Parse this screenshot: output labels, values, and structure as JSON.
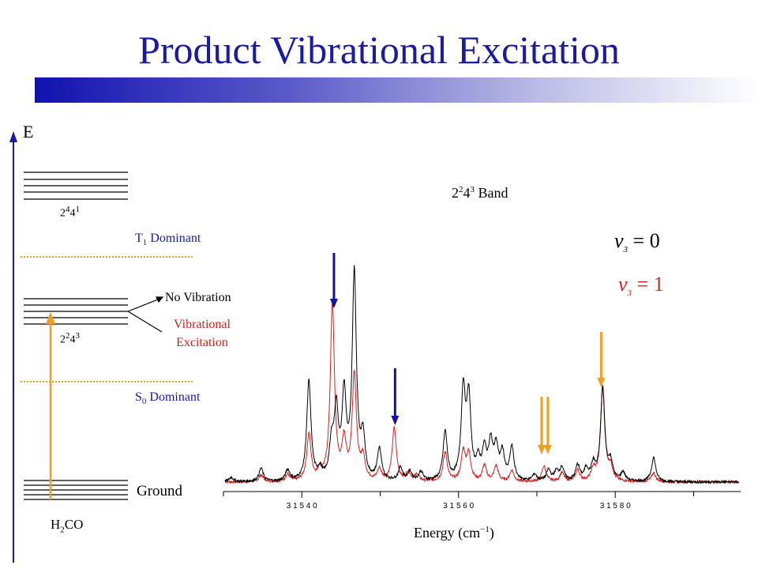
{
  "title": "Product Vibrational Excitation",
  "energy_diagram": {
    "axis_label": "E",
    "upper_state_base": "2",
    "upper_state_exp1": "4",
    "upper_state_mid": "4",
    "upper_state_exp2": "1",
    "t1_label_main": "T",
    "t1_label_sub": "1",
    "t1_label_rest": " Dominant",
    "middle_state_base": "2",
    "middle_state_exp1": "2",
    "middle_state_mid": "4",
    "middle_state_exp2": "3",
    "no_vibration": "No Vibration",
    "vibrational_line1": "Vibrational",
    "vibrational_line2": "Excitation",
    "s0_label_main": "S",
    "s0_label_sub": "0",
    "s0_label_rest": " Dominant",
    "ground_label": "Ground",
    "molecule_main": "H",
    "molecule_sub": "2",
    "molecule_rest": "CO"
  },
  "spectrum": {
    "band_base": "2",
    "band_exp1": "2",
    "band_mid": "4",
    "band_exp2": "3",
    "band_rest": " Band",
    "v0_main": "v",
    "v0_sub": "3",
    "v0_rest": " = 0",
    "v1_main": "v",
    "v1_sub": "3",
    "v1_rest": " = 1",
    "xlabel_main": "Energy (cm",
    "xlabel_exp": "−1",
    "xlabel_end": ")",
    "tick_labels": [
      "3 1 5 4 0",
      "3 1 5 6 0",
      "3 1 5 8 0"
    ]
  },
  "chart_data": {
    "type": "line",
    "xlabel": "Energy (cm−1)",
    "xlim": [
      31530,
      31596
    ],
    "major_ticks": [
      31540,
      31560,
      31580
    ],
    "minor_ticks": [
      31530,
      31550,
      31570,
      31590
    ],
    "series": [
      {
        "name": "v3 = 0",
        "color": "#000000",
        "peaks": [
          {
            "x": 31531,
            "h": 0.02
          },
          {
            "x": 31534.8,
            "h": 0.06
          },
          {
            "x": 31538.2,
            "h": 0.05
          },
          {
            "x": 31540.9,
            "h": 0.45
          },
          {
            "x": 31542.3,
            "h": 0.04
          },
          {
            "x": 31543.8,
            "h": 0.15
          },
          {
            "x": 31544.4,
            "h": 0.3
          },
          {
            "x": 31545.4,
            "h": 0.37
          },
          {
            "x": 31546.7,
            "h": 0.93
          },
          {
            "x": 31547.8,
            "h": 0.18
          },
          {
            "x": 31549.9,
            "h": 0.14
          },
          {
            "x": 31552.6,
            "h": 0.06
          },
          {
            "x": 31553.8,
            "h": 0.04
          },
          {
            "x": 31555.2,
            "h": 0.04
          },
          {
            "x": 31558.3,
            "h": 0.22
          },
          {
            "x": 31560.6,
            "h": 0.4
          },
          {
            "x": 31561.3,
            "h": 0.36
          },
          {
            "x": 31562.5,
            "h": 0.08
          },
          {
            "x": 31563.3,
            "h": 0.13
          },
          {
            "x": 31564.1,
            "h": 0.16
          },
          {
            "x": 31564.8,
            "h": 0.14
          },
          {
            "x": 31565.6,
            "h": 0.12
          },
          {
            "x": 31566.8,
            "h": 0.15
          },
          {
            "x": 31569.7,
            "h": 0.03
          },
          {
            "x": 31571.5,
            "h": 0.05
          },
          {
            "x": 31572.5,
            "h": 0.04
          },
          {
            "x": 31573.2,
            "h": 0.06
          },
          {
            "x": 31575.2,
            "h": 0.07
          },
          {
            "x": 31576.3,
            "h": 0.05
          },
          {
            "x": 31577.2,
            "h": 0.07
          },
          {
            "x": 31578.4,
            "h": 0.42
          },
          {
            "x": 31579.4,
            "h": 0.08
          },
          {
            "x": 31581.0,
            "h": 0.04
          },
          {
            "x": 31584.9,
            "h": 0.11
          }
        ]
      },
      {
        "name": "v3 = 1",
        "color": "#d42020",
        "peaks": [
          {
            "x": 31534.8,
            "h": 0.03
          },
          {
            "x": 31538.2,
            "h": 0.03
          },
          {
            "x": 31540.9,
            "h": 0.21
          },
          {
            "x": 31542.3,
            "h": 0.04
          },
          {
            "x": 31543.9,
            "h": 0.8
          },
          {
            "x": 31545.4,
            "h": 0.17
          },
          {
            "x": 31546.7,
            "h": 0.48
          },
          {
            "x": 31547.8,
            "h": 0.1
          },
          {
            "x": 31549.9,
            "h": 0.05
          },
          {
            "x": 31551.8,
            "h": 0.24
          },
          {
            "x": 31553.6,
            "h": 0.04
          },
          {
            "x": 31554.7,
            "h": 0.03
          },
          {
            "x": 31558.3,
            "h": 0.13
          },
          {
            "x": 31560.6,
            "h": 0.13
          },
          {
            "x": 31561.3,
            "h": 0.12
          },
          {
            "x": 31563.3,
            "h": 0.07
          },
          {
            "x": 31564.8,
            "h": 0.07
          },
          {
            "x": 31566.8,
            "h": 0.05
          },
          {
            "x": 31570.9,
            "h": 0.07
          },
          {
            "x": 31573.2,
            "h": 0.04
          },
          {
            "x": 31575.2,
            "h": 0.05
          },
          {
            "x": 31577.2,
            "h": 0.05
          },
          {
            "x": 31578.4,
            "h": 0.42
          },
          {
            "x": 31579.4,
            "h": 0.06
          },
          {
            "x": 31584.9,
            "h": 0.04
          }
        ]
      }
    ],
    "markers": [
      {
        "x": 31544.1,
        "color": "#1010a8"
      },
      {
        "x": 31551.9,
        "color": "#1010a8"
      },
      {
        "x": 31570.6,
        "color": "#f0a020"
      },
      {
        "x": 31571.4,
        "color": "#f0a020"
      },
      {
        "x": 31578.2,
        "color": "#f0a020"
      }
    ]
  }
}
